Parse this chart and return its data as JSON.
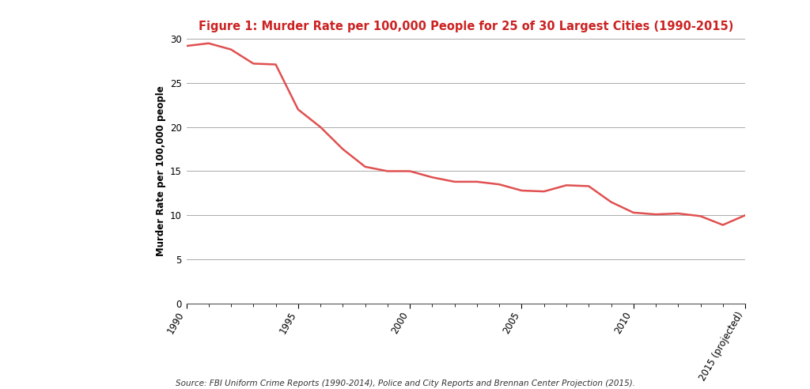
{
  "title": "Figure 1: Murder Rate per 100,000 People for 25 of 30 Largest Cities (1990-2015)",
  "title_color": "#cc2222",
  "ylabel": "Murder Rate per 100,000 people",
  "source_text": "Source: FBI Uniform Crime Reports (1990-2014), Police and City Reports and Brennan Center Projection (2015).",
  "line_color": "#e05050",
  "line_width": 1.8,
  "background_color": "#ffffff",
  "grid_color": "#aaaaaa",
  "ylim": [
    0,
    30
  ],
  "yticks": [
    0,
    5,
    10,
    15,
    20,
    25,
    30
  ],
  "x_years": [
    1990,
    1991,
    1992,
    1993,
    1994,
    1995,
    1996,
    1997,
    1998,
    1999,
    2000,
    2001,
    2002,
    2003,
    2004,
    2005,
    2006,
    2007,
    2008,
    2009,
    2010,
    2011,
    2012,
    2013,
    2014,
    2015
  ],
  "y_values": [
    29.2,
    29.5,
    28.8,
    27.2,
    27.1,
    22.0,
    20.0,
    17.5,
    15.5,
    15.0,
    15.0,
    14.3,
    13.8,
    13.8,
    13.5,
    12.8,
    12.7,
    13.4,
    13.3,
    11.5,
    10.3,
    10.1,
    10.2,
    9.9,
    8.9,
    10.0
  ],
  "xtick_labels": [
    "1990",
    "1995",
    "2000",
    "2005",
    "2010",
    "2015 (projected)"
  ],
  "xtick_positions": [
    1990,
    1995,
    2000,
    2005,
    2010,
    2015
  ],
  "title_fontsize": 10.5,
  "ylabel_fontsize": 8.5,
  "tick_fontsize": 8.5,
  "source_fontsize": 7.5
}
